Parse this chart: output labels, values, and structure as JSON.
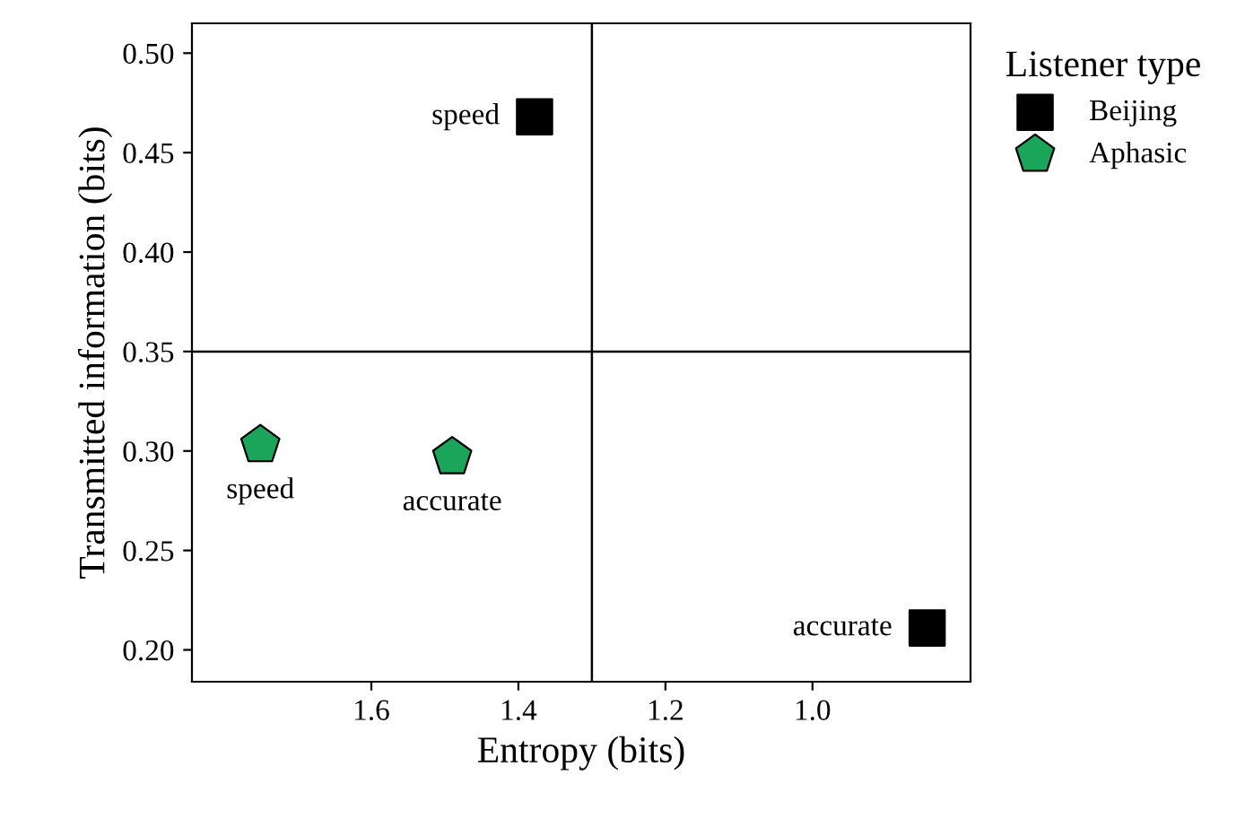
{
  "chart_data": {
    "type": "scatter",
    "xlabel": "Entropy (bits)",
    "ylabel": "Transmitted information (bits)",
    "legend_title": "Listener type",
    "legend": "top right",
    "series": [
      {
        "name": "Beijing",
        "color": "#000000",
        "marker": "square",
        "x": [
          1.378,
          0.844
        ],
        "values": [
          0.468,
          0.211
        ]
      },
      {
        "name": "Aphasic",
        "color": "#1aa55a",
        "x": [
          1.751,
          1.49
        ],
        "values": [
          0.303,
          0.297
        ]
      }
    ],
    "annotations": [
      {
        "text": "speed",
        "x": 1.378,
        "y": 0.468
      },
      {
        "text": "accurate",
        "x": 0.844,
        "y": 0.211
      },
      {
        "text": "speed",
        "x": 1.751,
        "y": 0.303
      },
      {
        "text": "accurate",
        "x": 1.49,
        "y": 0.297
      }
    ],
    "ref_lines": [
      {
        "axis": "x",
        "value": 1.3
      },
      {
        "axis": "y",
        "value": 0.35
      }
    ],
    "xlim": [
      1.844,
      0.785
    ],
    "ylim": [
      0.184,
      0.515
    ],
    "xticks": [
      1.6,
      1.4,
      1.2,
      {
        "value": 1.0,
        "label": "1.0"
      }
    ],
    "yticks": [
      {
        "value": 0.2,
        "label": "0.20"
      },
      0.25,
      {
        "value": 0.3,
        "label": "0.30"
      },
      0.35,
      {
        "value": 0.4,
        "label": "0.40"
      },
      0.45,
      {
        "value": 0.5,
        "label": "0.50"
      }
    ],
    "grid": false
  }
}
